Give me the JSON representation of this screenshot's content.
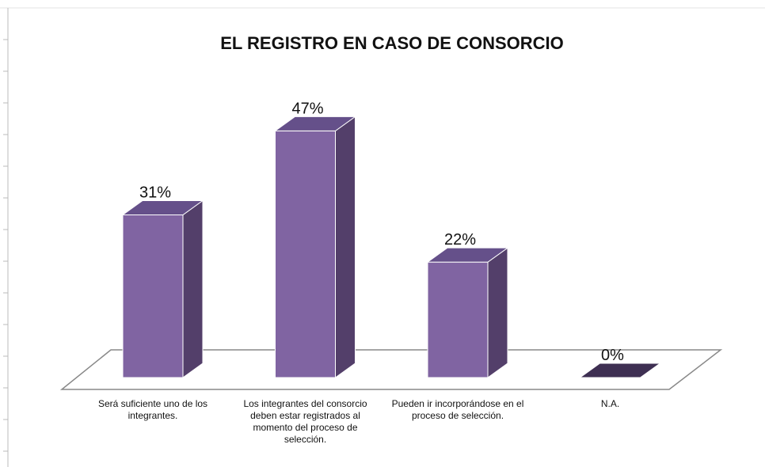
{
  "chart_data": {
    "type": "bar3d",
    "title": "EL REGISTRO EN CASO DE CONSORCIO",
    "categories": [
      "Será suficiente uno de los integrantes.",
      "Los integrantes del consorcio deben estar registrados al momento del proceso de selección.",
      "Pueden ir incorporándose en el proceso de selección.",
      "N.A."
    ],
    "values": [
      31,
      47,
      22,
      0
    ],
    "value_labels": [
      "31%",
      "47%",
      "22%",
      "0%"
    ],
    "color": "#8064a2"
  }
}
